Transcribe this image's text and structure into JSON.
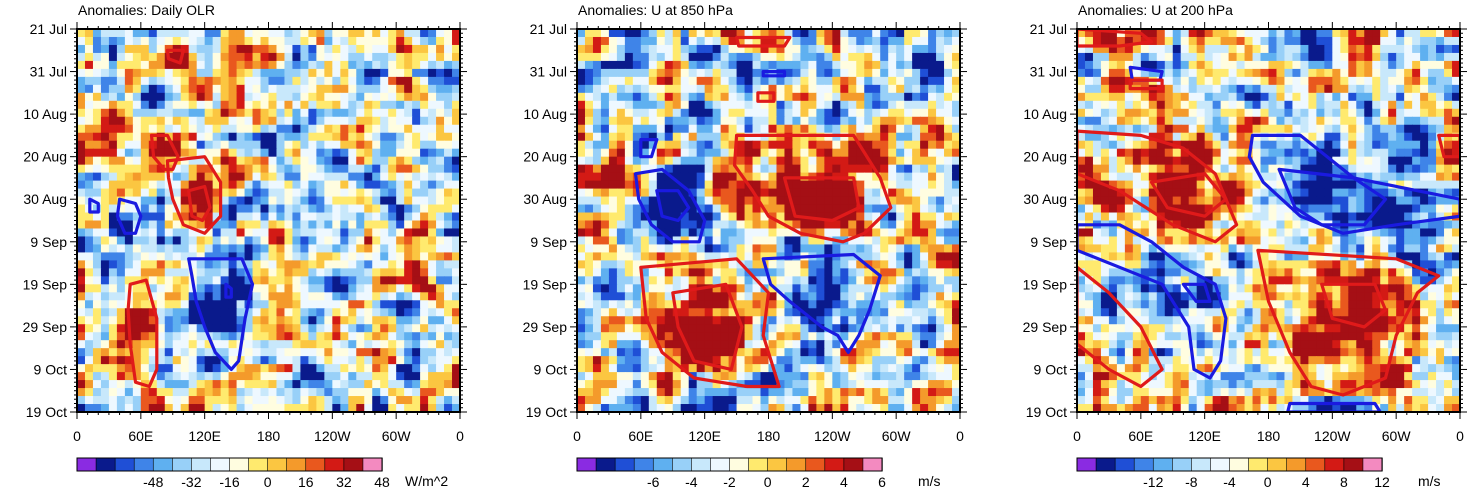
{
  "chart_data": [
    {
      "type": "heatmap",
      "title": "Anomalies: Daily OLR",
      "units": "W/m^2",
      "x_ticks": [
        "0",
        "60E",
        "120E",
        "180",
        "120W",
        "60W",
        "0"
      ],
      "x_range_deg": [
        0,
        360
      ],
      "y_ticks": [
        "21 Jul",
        "31 Jul",
        "10 Aug",
        "20 Aug",
        "30 Aug",
        "9 Sep",
        "19 Sep",
        "29 Sep",
        "9 Oct",
        "19 Oct"
      ],
      "y_range_days": [
        0,
        90
      ],
      "colorbar_labels": [
        "-48",
        "-32",
        "-16",
        "0",
        "16",
        "32",
        "48"
      ],
      "colorbar_colors": [
        "#8a2be2",
        "#0a1a8c",
        "#1f4fd6",
        "#3f84e8",
        "#5fb0f0",
        "#98d0f8",
        "#c8e8fb",
        "#eef8ff",
        "#fffde0",
        "#ffea6e",
        "#fbc641",
        "#f49a2b",
        "#e9581e",
        "#d31a15",
        "#a50f15",
        "#f38ac0"
      ],
      "contours": [
        {
          "color": "#1a1ae0",
          "points": [
            [
              12,
              40
            ],
            [
              20,
              41
            ],
            [
              20,
              43
            ],
            [
              12,
              43
            ]
          ]
        },
        {
          "color": "#1a1ae0",
          "points": [
            [
              40,
              40
            ],
            [
              55,
              41
            ],
            [
              60,
              44
            ],
            [
              55,
              48
            ],
            [
              45,
              48
            ],
            [
              38,
              44
            ]
          ]
        },
        {
          "color": "#1a1ae0",
          "points": [
            [
              105,
              54
            ],
            [
              155,
              54
            ],
            [
              165,
              60
            ],
            [
              158,
              68
            ],
            [
              152,
              78
            ],
            [
              145,
              80
            ],
            [
              130,
              76
            ],
            [
              120,
              70
            ],
            [
              112,
              64
            ],
            [
              108,
              58
            ]
          ]
        },
        {
          "color": "#1a1ae0",
          "points": [
            [
              140,
              60
            ],
            [
              145,
              61
            ],
            [
              145,
              63
            ],
            [
              140,
              63
            ]
          ]
        },
        {
          "color": "#e01a1a",
          "points": [
            [
              85,
              5
            ],
            [
              100,
              5
            ],
            [
              97,
              8
            ],
            [
              86,
              7
            ]
          ]
        },
        {
          "color": "#e01a1a",
          "points": [
            [
              70,
              25
            ],
            [
              85,
              25
            ],
            [
              95,
              30
            ],
            [
              90,
              33
            ],
            [
              82,
              33
            ],
            [
              72,
              30
            ]
          ]
        },
        {
          "color": "#e01a1a",
          "points": [
            [
              85,
              31
            ],
            [
              120,
              30
            ],
            [
              135,
              36
            ],
            [
              135,
              44
            ],
            [
              120,
              48
            ],
            [
              100,
              46
            ],
            [
              90,
              40
            ],
            [
              86,
              35
            ]
          ]
        },
        {
          "color": "#e01a1a",
          "points": [
            [
              105,
              38
            ],
            [
              120,
              37
            ],
            [
              125,
              42
            ],
            [
              118,
              45
            ],
            [
              108,
              44
            ]
          ]
        },
        {
          "color": "#e01a1a",
          "points": [
            [
              50,
              60
            ],
            [
              65,
              59
            ],
            [
              75,
              68
            ],
            [
              75,
              80
            ],
            [
              68,
              84
            ],
            [
              55,
              83
            ],
            [
              50,
              74
            ],
            [
              48,
              66
            ]
          ]
        }
      ]
    },
    {
      "type": "heatmap",
      "title": "Anomalies: U at 850 hPa",
      "units": "m/s",
      "x_ticks": [
        "0",
        "60E",
        "120E",
        "180",
        "120W",
        "60W",
        "0"
      ],
      "x_range_deg": [
        0,
        360
      ],
      "y_ticks": [
        "21 Jul",
        "31 Jul",
        "10 Aug",
        "20 Aug",
        "30 Aug",
        "9 Sep",
        "19 Sep",
        "29 Sep",
        "9 Oct",
        "19 Oct"
      ],
      "y_range_days": [
        0,
        90
      ],
      "colorbar_labels": [
        "-6",
        "-4",
        "-2",
        "0",
        "2",
        "4",
        "6"
      ],
      "colorbar_colors": [
        "#8a2be2",
        "#0a1a8c",
        "#1f4fd6",
        "#3f84e8",
        "#5fb0f0",
        "#98d0f8",
        "#c8e8fb",
        "#eef8ff",
        "#fffde0",
        "#ffea6e",
        "#fbc641",
        "#f49a2b",
        "#e9581e",
        "#d31a15",
        "#a50f15",
        "#f38ac0"
      ],
      "contours": [
        {
          "color": "#1a1ae0",
          "points": [
            [
              60,
              26
            ],
            [
              75,
              26
            ],
            [
              70,
              30
            ],
            [
              60,
              30
            ]
          ]
        },
        {
          "color": "#1a1ae0",
          "points": [
            [
              55,
              34
            ],
            [
              80,
              33
            ],
            [
              105,
              38
            ],
            [
              120,
              45
            ],
            [
              115,
              50
            ],
            [
              90,
              50
            ],
            [
              70,
              46
            ],
            [
              58,
              40
            ]
          ]
        },
        {
          "color": "#1a1ae0",
          "points": [
            [
              75,
              38
            ],
            [
              95,
              38
            ],
            [
              105,
              42
            ],
            [
              95,
              45
            ],
            [
              80,
              44
            ]
          ]
        },
        {
          "color": "#1a1ae0",
          "points": [
            [
              175,
              10
            ],
            [
              195,
              10
            ],
            [
              195,
              11
            ],
            [
              175,
              11
            ]
          ]
        },
        {
          "color": "#1a1ae0",
          "points": [
            [
              175,
              54
            ],
            [
              260,
              53
            ],
            [
              285,
              58
            ],
            [
              275,
              66
            ],
            [
              265,
              72
            ],
            [
              255,
              76
            ],
            [
              245,
              72
            ],
            [
              230,
              70
            ],
            [
              200,
              64
            ],
            [
              182,
              60
            ]
          ]
        },
        {
          "color": "#e01a1a",
          "points": [
            [
              150,
              2
            ],
            [
              200,
              2
            ],
            [
              195,
              4
            ],
            [
              152,
              4
            ]
          ]
        },
        {
          "color": "#e01a1a",
          "points": [
            [
              170,
              15
            ],
            [
              185,
              15
            ],
            [
              185,
              17
            ],
            [
              170,
              17
            ]
          ]
        },
        {
          "color": "#e01a1a",
          "points": [
            [
              150,
              25
            ],
            [
              260,
              25
            ],
            [
              285,
              35
            ],
            [
              295,
              42
            ],
            [
              270,
              48
            ],
            [
              250,
              50
            ],
            [
              210,
              48
            ],
            [
              180,
              44
            ],
            [
              165,
              38
            ],
            [
              148,
              32
            ]
          ]
        },
        {
          "color": "#e01a1a",
          "points": [
            [
              195,
              35
            ],
            [
              260,
              35
            ],
            [
              265,
              42
            ],
            [
              240,
              45
            ],
            [
              205,
              44
            ]
          ]
        },
        {
          "color": "#e01a1a",
          "points": [
            [
              60,
              56
            ],
            [
              150,
              54
            ],
            [
              180,
              62
            ],
            [
              175,
              72
            ],
            [
              190,
              84
            ],
            [
              160,
              84
            ],
            [
              110,
              82
            ],
            [
              80,
              76
            ],
            [
              65,
              68
            ]
          ]
        },
        {
          "color": "#e01a1a",
          "points": [
            [
              90,
              62
            ],
            [
              140,
              60
            ],
            [
              155,
              70
            ],
            [
              145,
              80
            ],
            [
              110,
              78
            ],
            [
              95,
              70
            ]
          ]
        }
      ]
    },
    {
      "type": "heatmap",
      "title": "Anomalies: U at 200 hPa",
      "units": "m/s",
      "x_ticks": [
        "0",
        "60E",
        "120E",
        "180",
        "120W",
        "60W",
        "0"
      ],
      "x_range_deg": [
        0,
        360
      ],
      "y_ticks": [
        "21 Jul",
        "31 Jul",
        "10 Aug",
        "20 Aug",
        "30 Aug",
        "9 Sep",
        "19 Sep",
        "29 Sep",
        "9 Oct",
        "19 Oct"
      ],
      "y_range_days": [
        0,
        90
      ],
      "colorbar_labels": [
        "-12",
        "-8",
        "-4",
        "0",
        "4",
        "8",
        "12"
      ],
      "colorbar_colors": [
        "#8a2be2",
        "#0a1a8c",
        "#1f4fd6",
        "#3f84e8",
        "#5fb0f0",
        "#98d0f8",
        "#c8e8fb",
        "#eef8ff",
        "#fffde0",
        "#ffea6e",
        "#fbc641",
        "#f49a2b",
        "#e9581e",
        "#d31a15",
        "#a50f15",
        "#f38ac0"
      ],
      "contours": [
        {
          "color": "#1a1ae0",
          "points": [
            [
              50,
              9
            ],
            [
              80,
              10
            ],
            [
              78,
              12
            ],
            [
              52,
              12
            ]
          ]
        },
        {
          "color": "#1a1ae0",
          "points": [
            [
              165,
              25
            ],
            [
              210,
              25
            ],
            [
              260,
              35
            ],
            [
              360,
              40
            ],
            [
              360,
              44
            ],
            [
              300,
              46
            ],
            [
              250,
              48
            ],
            [
              210,
              44
            ],
            [
              175,
              36
            ],
            [
              162,
              30
            ]
          ]
        },
        {
          "color": "#1a1ae0",
          "points": [
            [
              190,
              33
            ],
            [
              260,
              35
            ],
            [
              290,
              40
            ],
            [
              270,
              46
            ],
            [
              230,
              46
            ],
            [
              205,
              42
            ]
          ]
        },
        {
          "color": "#1a1ae0",
          "points": [
            [
              0,
              46
            ],
            [
              40,
              46
            ],
            [
              70,
              50
            ],
            [
              100,
              56
            ],
            [
              130,
              60
            ],
            [
              140,
              68
            ],
            [
              135,
              78
            ],
            [
              125,
              82
            ],
            [
              110,
              80
            ],
            [
              105,
              70
            ],
            [
              80,
              60
            ],
            [
              40,
              56
            ],
            [
              0,
              52
            ]
          ]
        },
        {
          "color": "#1a1ae0",
          "points": [
            [
              100,
              60
            ],
            [
              120,
              60
            ],
            [
              125,
              64
            ],
            [
              112,
              64
            ]
          ]
        },
        {
          "color": "#1a1ae0",
          "points": [
            [
              200,
              88
            ],
            [
              280,
              88
            ],
            [
              285,
              90
            ],
            [
              198,
              90
            ]
          ]
        },
        {
          "color": "#e01a1a",
          "points": [
            [
              0,
              0
            ],
            [
              60,
              1
            ],
            [
              70,
              3
            ],
            [
              40,
              4
            ],
            [
              0,
              4
            ]
          ]
        },
        {
          "color": "#e01a1a",
          "points": [
            [
              50,
              12
            ],
            [
              80,
              12
            ],
            [
              80,
              14
            ],
            [
              50,
              14
            ]
          ]
        },
        {
          "color": "#e01a1a",
          "points": [
            [
              0,
              24
            ],
            [
              60,
              25
            ],
            [
              100,
              28
            ],
            [
              130,
              34
            ],
            [
              150,
              46
            ],
            [
              130,
              50
            ],
            [
              90,
              46
            ],
            [
              40,
              38
            ],
            [
              0,
              34
            ]
          ]
        },
        {
          "color": "#e01a1a",
          "points": [
            [
              70,
              36
            ],
            [
              120,
              34
            ],
            [
              140,
              40
            ],
            [
              120,
              44
            ],
            [
              85,
              42
            ]
          ]
        },
        {
          "color": "#e01a1a",
          "points": [
            [
              170,
              52
            ],
            [
              300,
              54
            ],
            [
              340,
              58
            ],
            [
              320,
              62
            ],
            [
              300,
              72
            ],
            [
              290,
              82
            ],
            [
              250,
              86
            ],
            [
              220,
              84
            ],
            [
              200,
              76
            ],
            [
              180,
              64
            ]
          ]
        },
        {
          "color": "#e01a1a",
          "points": [
            [
              230,
              60
            ],
            [
              280,
              60
            ],
            [
              290,
              66
            ],
            [
              270,
              70
            ],
            [
              240,
              68
            ]
          ]
        },
        {
          "color": "#e01a1a",
          "points": [
            [
              0,
              56
            ],
            [
              30,
              62
            ],
            [
              60,
              70
            ],
            [
              80,
              80
            ],
            [
              60,
              84
            ],
            [
              30,
              80
            ],
            [
              0,
              74
            ]
          ]
        },
        {
          "color": "#e01a1a",
          "points": [
            [
              340,
              25
            ],
            [
              360,
              25
            ],
            [
              360,
              30
            ],
            [
              345,
              30
            ]
          ]
        }
      ]
    }
  ]
}
